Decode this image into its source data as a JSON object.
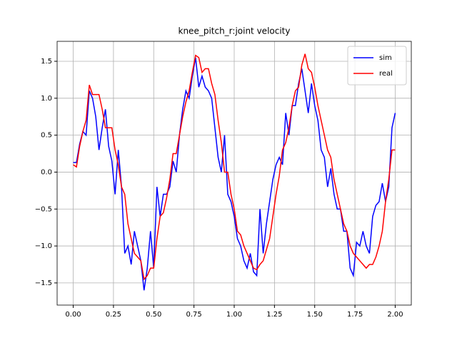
{
  "chart_data": {
    "type": "line",
    "title": "knee_pitch_r:joint velocity",
    "x": [
      0,
      0.02,
      0.04,
      0.06,
      0.08,
      0.1,
      0.12,
      0.14,
      0.16,
      0.18,
      0.2,
      0.22,
      0.24,
      0.26,
      0.28,
      0.3,
      0.32,
      0.34,
      0.36,
      0.38,
      0.4,
      0.42,
      0.44,
      0.46,
      0.48,
      0.5,
      0.52,
      0.54,
      0.56,
      0.58,
      0.6,
      0.62,
      0.64,
      0.66,
      0.68,
      0.7,
      0.72,
      0.74,
      0.76,
      0.78,
      0.8,
      0.82,
      0.84,
      0.86,
      0.88,
      0.9,
      0.92,
      0.94,
      0.96,
      0.98,
      1.0,
      1.02,
      1.04,
      1.06,
      1.08,
      1.1,
      1.12,
      1.14,
      1.16,
      1.18,
      1.2,
      1.22,
      1.24,
      1.26,
      1.28,
      1.3,
      1.32,
      1.34,
      1.36,
      1.38,
      1.4,
      1.42,
      1.44,
      1.46,
      1.48,
      1.5,
      1.52,
      1.54,
      1.56,
      1.58,
      1.6,
      1.62,
      1.64,
      1.66,
      1.68,
      1.7,
      1.72,
      1.74,
      1.76,
      1.78,
      1.8,
      1.82,
      1.84,
      1.86,
      1.88,
      1.9,
      1.92,
      1.94,
      1.96,
      1.98,
      2.0
    ],
    "series": [
      {
        "name": "sim",
        "color": "#0000ff",
        "values": [
          0.13,
          0.13,
          0.38,
          0.55,
          0.5,
          1.1,
          1.0,
          0.75,
          0.3,
          0.6,
          0.85,
          0.35,
          0.15,
          -0.3,
          0.3,
          -0.2,
          -1.1,
          -1.0,
          -1.25,
          -0.8,
          -1.0,
          -1.2,
          -1.6,
          -1.3,
          -0.8,
          -1.3,
          -0.2,
          -0.6,
          -0.3,
          -0.3,
          -0.2,
          0.15,
          0.0,
          0.5,
          0.85,
          1.1,
          1.0,
          1.3,
          1.55,
          1.15,
          1.3,
          1.15,
          1.1,
          1.0,
          0.6,
          0.2,
          0.0,
          0.5,
          -0.3,
          -0.4,
          -0.6,
          -0.9,
          -1.0,
          -1.2,
          -1.3,
          -1.1,
          -1.35,
          -1.4,
          -0.5,
          -1.1,
          -0.7,
          -0.4,
          -0.1,
          0.1,
          0.2,
          0.1,
          0.8,
          0.5,
          0.9,
          0.9,
          1.2,
          1.4,
          1.1,
          0.8,
          1.2,
          0.9,
          0.7,
          0.3,
          0.2,
          -0.2,
          0.05,
          -0.3,
          -0.5,
          -0.5,
          -0.8,
          -0.8,
          -1.3,
          -1.4,
          -0.95,
          -1.0,
          -0.8,
          -1.0,
          -1.1,
          -0.6,
          -0.45,
          -0.4,
          -0.15,
          -0.4,
          -0.2,
          0.6,
          0.8
        ]
      },
      {
        "name": "real",
        "color": "#ff0000",
        "values": [
          0.1,
          0.07,
          0.35,
          0.55,
          0.7,
          1.18,
          1.05,
          1.05,
          1.05,
          0.85,
          0.6,
          0.6,
          0.6,
          0.3,
          0.1,
          -0.2,
          -0.3,
          -0.7,
          -0.9,
          -1.1,
          -1.15,
          -1.2,
          -1.45,
          -1.4,
          -1.3,
          -1.3,
          -0.9,
          -0.6,
          -0.55,
          -0.35,
          -0.1,
          0.25,
          0.25,
          0.5,
          0.75,
          0.95,
          1.1,
          1.35,
          1.58,
          1.55,
          1.35,
          1.4,
          1.4,
          1.2,
          1.05,
          0.7,
          0.4,
          0.0,
          0.0,
          -0.3,
          -0.5,
          -0.8,
          -0.85,
          -1.0,
          -1.1,
          -1.2,
          -1.3,
          -1.32,
          -1.25,
          -1.2,
          -1.05,
          -0.9,
          -0.6,
          -0.3,
          -0.05,
          0.3,
          0.4,
          0.6,
          0.9,
          1.1,
          1.15,
          1.45,
          1.6,
          1.4,
          1.35,
          1.15,
          0.9,
          0.7,
          0.5,
          0.3,
          0.2,
          -0.1,
          -0.3,
          -0.5,
          -0.7,
          -0.8,
          -1.0,
          -1.1,
          -1.15,
          -1.2,
          -1.25,
          -1.3,
          -1.25,
          -1.25,
          -1.15,
          -1.0,
          -0.8,
          -0.4,
          -0.1,
          0.3,
          0.3
        ]
      }
    ],
    "xlim": [
      -0.1,
      2.1
    ],
    "ylim": [
      -1.8,
      1.77
    ],
    "xticks": [
      {
        "value": 0,
        "label": "0.00"
      },
      0.25,
      {
        "value": 0.5,
        "label": "0.50"
      },
      0.75,
      {
        "value": 1,
        "label": "1.00"
      },
      1.25,
      {
        "value": 1.5,
        "label": "1.50"
      },
      1.75,
      {
        "value": 2,
        "label": "2.00"
      }
    ],
    "yticks": [
      {
        "value": -1.5,
        "label": "−1.5"
      },
      {
        "value": -1,
        "label": "−1.0"
      },
      {
        "value": -0.5,
        "label": "−0.5"
      },
      {
        "value": 0,
        "label": "0.0"
      },
      0.5,
      {
        "value": 1,
        "label": "1.0"
      },
      1.5
    ],
    "grid": true,
    "legend": "upper-right"
  }
}
